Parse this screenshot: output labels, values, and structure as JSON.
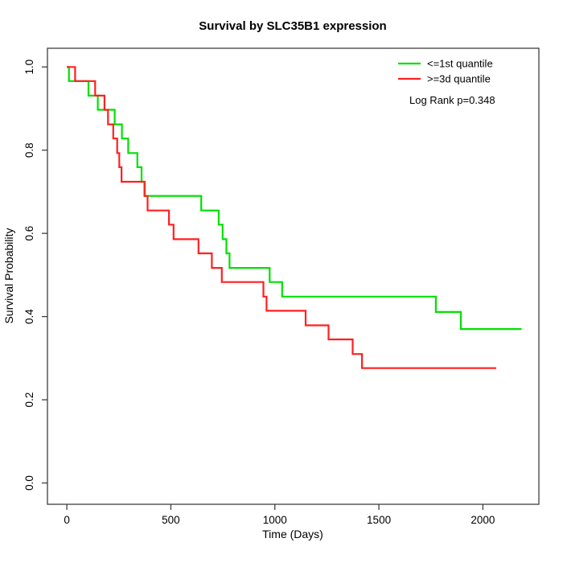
{
  "chart_data": {
    "type": "line",
    "subtype": "kaplan-meier-step",
    "title": "Survival by SLC35B1 expression",
    "xlabel": "Time (Days)",
    "ylabel": "Survival Probability",
    "xlim": [
      0,
      2270
    ],
    "ylim": [
      0,
      1.04
    ],
    "x_ticks": [
      {
        "value": 0,
        "label": "0"
      },
      {
        "value": 500,
        "label": "500"
      },
      {
        "value": 1000,
        "label": "1000"
      },
      {
        "value": 1500,
        "label": "1500"
      },
      {
        "value": 2000,
        "label": "2000"
      }
    ],
    "y_ticks": [
      {
        "value": 0.0,
        "label": "0.0"
      },
      {
        "value": 0.2,
        "label": "0.2"
      },
      {
        "value": 0.4,
        "label": "0.4"
      },
      {
        "value": 0.6,
        "label": "0.6"
      },
      {
        "value": 0.8,
        "label": "0.8"
      },
      {
        "value": 1.0,
        "label": "1.0"
      }
    ],
    "grid": false,
    "legend_position": "top-right",
    "annotation": "Log Rank p=0.348",
    "series": [
      {
        "name": "<=1st quantile",
        "color": "#00E000",
        "start": [
          0,
          1.0
        ],
        "steps": [
          [
            10,
            0.966
          ],
          [
            104,
            0.931
          ],
          [
            149,
            0.897
          ],
          [
            230,
            0.862
          ],
          [
            265,
            0.828
          ],
          [
            295,
            0.793
          ],
          [
            339,
            0.759
          ],
          [
            359,
            0.724
          ],
          [
            375,
            0.69
          ],
          [
            646,
            0.655
          ],
          [
            730,
            0.621
          ],
          [
            749,
            0.586
          ],
          [
            767,
            0.552
          ],
          [
            782,
            0.517
          ],
          [
            975,
            0.483
          ],
          [
            1035,
            0.448
          ],
          [
            1774,
            0.411
          ],
          [
            1894,
            0.37
          ]
        ],
        "end_time": 2186
      },
      {
        "name": ">=3d quantile",
        "color": "#FF2020",
        "start": [
          0,
          1.0
        ],
        "steps": [
          [
            40,
            0.966
          ],
          [
            136,
            0.931
          ],
          [
            181,
            0.897
          ],
          [
            198,
            0.862
          ],
          [
            223,
            0.828
          ],
          [
            242,
            0.793
          ],
          [
            252,
            0.759
          ],
          [
            263,
            0.724
          ],
          [
            373,
            0.69
          ],
          [
            388,
            0.655
          ],
          [
            491,
            0.621
          ],
          [
            513,
            0.586
          ],
          [
            633,
            0.552
          ],
          [
            697,
            0.517
          ],
          [
            745,
            0.483
          ],
          [
            945,
            0.448
          ],
          [
            960,
            0.414
          ],
          [
            1148,
            0.379
          ],
          [
            1258,
            0.345
          ],
          [
            1374,
            0.31
          ],
          [
            1419,
            0.276
          ]
        ],
        "end_time": 2064
      }
    ]
  }
}
